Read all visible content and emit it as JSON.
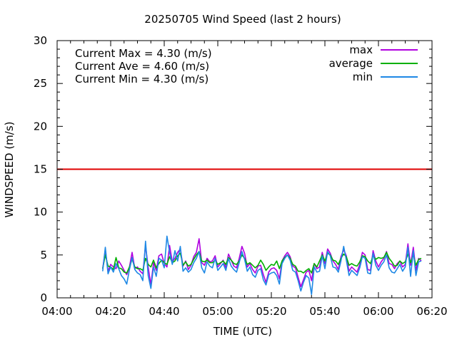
{
  "chart_data": {
    "type": "line",
    "title": "20250705 Wind Speed (last 2 hours)",
    "xlabel": "TIME (UTC)",
    "ylabel": "WINDSPEED (m/s)",
    "x_ticks": [
      "04:00",
      "04:20",
      "04:40",
      "05:00",
      "05:20",
      "05:40",
      "06:00",
      "06:20"
    ],
    "y_ticks": [
      0,
      5,
      10,
      15,
      20,
      25,
      30
    ],
    "xlim": [
      "04:00",
      "06:20"
    ],
    "ylim": [
      0,
      30
    ],
    "grid": false,
    "legend_position": "top-right",
    "annotations": [
      "Current Max = 4.30 (m/s)",
      "Current Ave = 4.60 (m/s)",
      "Current Min = 4.30 (m/s)"
    ],
    "reference_line": {
      "y": 15,
      "color": "#e00000"
    },
    "x": [
      "04:17",
      "04:18",
      "04:19",
      "04:20",
      "04:21",
      "04:22",
      "04:23",
      "04:24",
      "04:25",
      "04:26",
      "04:27",
      "04:28",
      "04:29",
      "04:30",
      "04:31",
      "04:32",
      "04:33",
      "04:34",
      "04:35",
      "04:36",
      "04:37",
      "04:38",
      "04:39",
      "04:40",
      "04:41",
      "04:42",
      "04:43",
      "04:44",
      "04:45",
      "04:46",
      "04:47",
      "04:48",
      "04:49",
      "04:50",
      "04:51",
      "04:52",
      "04:53",
      "04:54",
      "04:55",
      "04:56",
      "04:57",
      "04:58",
      "04:59",
      "05:00",
      "05:01",
      "05:02",
      "05:03",
      "05:04",
      "05:05",
      "05:06",
      "05:07",
      "05:08",
      "05:09",
      "05:10",
      "05:11",
      "05:12",
      "05:13",
      "05:14",
      "05:15",
      "05:16",
      "05:17",
      "05:18",
      "05:19",
      "05:20",
      "05:21",
      "05:22",
      "05:23",
      "05:24",
      "05:25",
      "05:26",
      "05:27",
      "05:28",
      "05:29",
      "05:30",
      "05:31",
      "05:32",
      "05:33",
      "05:34",
      "05:35",
      "05:36",
      "05:37",
      "05:38",
      "05:39",
      "05:40",
      "05:41",
      "05:42",
      "05:43",
      "05:44",
      "05:45",
      "05:46",
      "05:47",
      "05:48",
      "05:49",
      "05:50",
      "05:51",
      "05:52",
      "05:53",
      "05:54",
      "05:55",
      "05:56",
      "05:57",
      "05:58",
      "05:59",
      "06:00",
      "06:01",
      "06:02",
      "06:03",
      "06:04",
      "06:05",
      "06:06",
      "06:07",
      "06:08",
      "06:09",
      "06:10",
      "06:11",
      "06:12",
      "06:13",
      "06:14",
      "06:15",
      "06:16"
    ],
    "series": [
      {
        "name": "max",
        "color": "#b000e0",
        "values": [
          3.4,
          5.6,
          3.1,
          3.9,
          3.6,
          3.4,
          4.3,
          3.8,
          3.2,
          2.7,
          3.6,
          5.3,
          3.4,
          3.6,
          3.1,
          2.8,
          6.1,
          3.6,
          1.5,
          4.1,
          3.2,
          4.9,
          5.1,
          4.0,
          3.6,
          6.1,
          4.2,
          4.6,
          5.3,
          5.7,
          3.7,
          4.3,
          3.3,
          3.8,
          4.8,
          5.3,
          6.9,
          4.1,
          3.8,
          4.6,
          4.2,
          4.3,
          4.9,
          3.6,
          4.0,
          4.4,
          3.5,
          5.1,
          4.4,
          3.7,
          3.5,
          4.6,
          6.0,
          5.2,
          3.6,
          4.0,
          3.3,
          2.9,
          3.7,
          3.8,
          2.7,
          1.8,
          3.0,
          3.4,
          3.5,
          3.2,
          2.2,
          4.3,
          4.9,
          5.3,
          4.8,
          3.7,
          3.5,
          2.4,
          1.3,
          2.1,
          3.0,
          3.2,
          2.0,
          4.0,
          3.4,
          3.6,
          5.3,
          4.0,
          5.7,
          5.2,
          4.3,
          3.9,
          3.3,
          4.8,
          5.6,
          4.9,
          3.1,
          3.6,
          3.3,
          3.0,
          3.9,
          5.3,
          5.0,
          3.3,
          3.2,
          5.5,
          4.3,
          3.6,
          4.2,
          4.6,
          5.4,
          4.0,
          3.9,
          3.4,
          4.0,
          4.3,
          3.6,
          3.9,
          6.3,
          3.8,
          5.9,
          3.2,
          4.6,
          4.3
        ]
      },
      {
        "name": "average",
        "color": "#00b000",
        "values": [
          3.4,
          5.0,
          3.7,
          3.6,
          3.3,
          4.7,
          3.5,
          3.4,
          3.0,
          2.9,
          3.6,
          4.5,
          3.6,
          3.4,
          3.4,
          3.2,
          4.6,
          3.9,
          3.6,
          4.4,
          3.5,
          4.0,
          4.4,
          4.1,
          3.9,
          4.8,
          4.1,
          4.3,
          4.9,
          5.2,
          3.8,
          4.2,
          3.7,
          3.9,
          4.5,
          5.0,
          5.4,
          4.3,
          4.2,
          4.4,
          4.1,
          4.1,
          4.4,
          3.9,
          4.1,
          4.3,
          3.9,
          4.7,
          4.4,
          4.0,
          3.9,
          4.3,
          5.0,
          4.6,
          3.9,
          4.1,
          3.8,
          3.5,
          3.8,
          4.4,
          3.9,
          3.2,
          3.6,
          3.9,
          3.8,
          4.3,
          3.4,
          4.3,
          4.7,
          5.0,
          4.6,
          3.9,
          3.7,
          3.1,
          3.1,
          2.9,
          3.2,
          3.4,
          2.9,
          4.0,
          3.6,
          4.3,
          5.0,
          4.3,
          5.2,
          5.0,
          4.4,
          4.3,
          3.9,
          4.6,
          5.1,
          4.8,
          3.8,
          4.0,
          3.8,
          3.7,
          4.2,
          4.9,
          4.8,
          4.3,
          4.0,
          4.9,
          4.5,
          4.7,
          4.6,
          4.7,
          5.3,
          4.6,
          4.2,
          3.7,
          3.8,
          4.3,
          4.0,
          4.2,
          5.1,
          4.1,
          5.0,
          3.8,
          4.5,
          4.6
        ]
      },
      {
        "name": "min",
        "color": "#1e88e5",
        "values": [
          3.1,
          5.9,
          2.8,
          3.6,
          3.0,
          4.0,
          3.4,
          2.6,
          2.2,
          1.6,
          3.3,
          4.7,
          3.3,
          2.9,
          2.7,
          2.0,
          6.6,
          2.6,
          1.1,
          3.6,
          2.5,
          4.6,
          4.4,
          3.5,
          7.2,
          5.3,
          3.9,
          5.5,
          4.3,
          6.0,
          3.1,
          3.5,
          3.0,
          3.3,
          4.1,
          4.6,
          5.4,
          3.5,
          2.9,
          4.2,
          3.7,
          3.5,
          4.6,
          3.2,
          3.6,
          4.0,
          3.2,
          4.6,
          3.7,
          3.3,
          3.0,
          4.1,
          5.4,
          4.5,
          3.1,
          3.6,
          2.7,
          2.4,
          3.2,
          3.4,
          2.1,
          1.5,
          2.7,
          2.9,
          3.0,
          2.6,
          1.6,
          4.0,
          4.6,
          5.0,
          4.4,
          3.2,
          3.0,
          2.0,
          0.8,
          1.8,
          2.6,
          2.3,
          0.4,
          3.6,
          3.0,
          3.1,
          4.9,
          3.4,
          5.4,
          4.9,
          3.6,
          3.5,
          3.0,
          4.3,
          6.0,
          4.4,
          2.6,
          3.2,
          2.9,
          2.6,
          3.5,
          4.8,
          4.6,
          2.9,
          2.8,
          5.2,
          3.8,
          3.2,
          3.8,
          4.2,
          5.0,
          3.5,
          3.0,
          2.9,
          3.4,
          3.9,
          3.1,
          3.6,
          5.9,
          2.5,
          5.5,
          2.6,
          4.2,
          4.3
        ]
      }
    ]
  }
}
